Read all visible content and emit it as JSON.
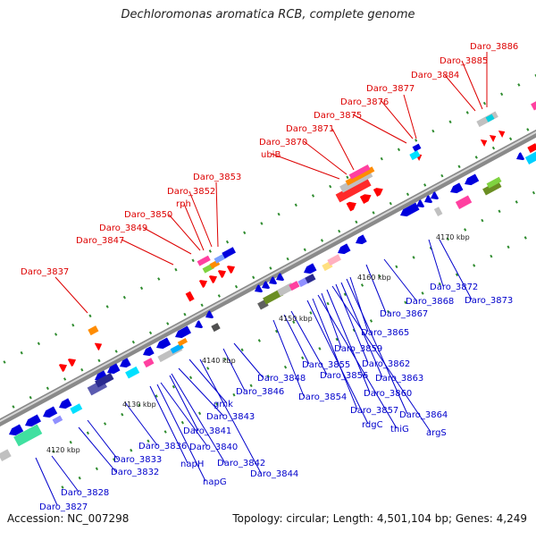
{
  "title": "Dechloromonas aromatica RCB, complete genome",
  "accession": "Accession: NC_007298",
  "summary": "Topology: circular; Length: 4,501,104 bp; Genes: 4,249",
  "ticks": [
    "4120 kbp",
    "4130 kbp",
    "4140 kbp",
    "4150 kbp",
    "4160 kbp",
    "4170 kbp"
  ],
  "labels_red": [
    "Daro_3837",
    "Daro_3847",
    "Daro_3849",
    "Daro_3850",
    "rph",
    "Daro_3852",
    "Daro_3853",
    "ubiB",
    "Daro_3870",
    "Daro_3871",
    "Daro_3875",
    "Daro_3876",
    "Daro_3877",
    "Daro_3884",
    "Daro_3885",
    "Daro_3886"
  ],
  "labels_blue": [
    "Daro_3827",
    "Daro_3828",
    "Daro_3832",
    "Daro_3833",
    "Daro_3836",
    "napH",
    "napG",
    "Daro_3840",
    "Daro_3841",
    "Daro_3842",
    "Daro_3843",
    "gmk",
    "Daro_3844",
    "Daro_3846",
    "Daro_3848",
    "Daro_3854",
    "Daro_3855",
    "Daro_3856",
    "rdgC",
    "Daro_3857",
    "thiG",
    "Daro_3859",
    "Daro_3860",
    "argS",
    "Daro_3862",
    "Daro_3863",
    "Daro_3864",
    "Daro_3865",
    "Daro_3867",
    "Daro_3868",
    "Daro_3872",
    "Daro_3873"
  ],
  "colors": {
    "forward": "#ff0000",
    "reverse": "#0000dd",
    "backbone": "#999999",
    "tick_mark": "#2e8b2e"
  }
}
